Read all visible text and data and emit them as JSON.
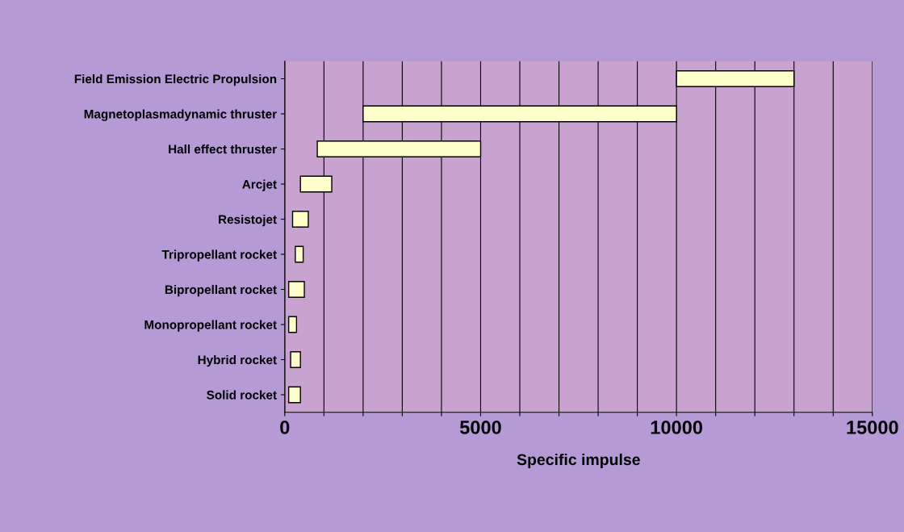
{
  "chart_data": {
    "type": "bar",
    "orientation": "horizontal",
    "xlabel": "Specific impulse",
    "categories": [
      "Field Emission Electric Propulsion",
      "Magnetoplasmadynamic thruster",
      "Hall effect thruster",
      "Arcjet",
      "Resistojet",
      "Tripropellant rocket",
      "Bipropellant rocket",
      "Monopropellant rocket",
      "Hybrid rocket",
      "Solid rocket"
    ],
    "base": [
      10000,
      2000,
      830,
      400,
      200,
      270,
      100,
      100,
      150,
      100
    ],
    "values": [
      3000,
      8000,
      4170,
      800,
      400,
      200,
      400,
      200,
      250,
      300
    ],
    "color": "#ffffcc",
    "xlim": [
      0,
      15000
    ],
    "xticks": [
      0,
      {
        "value": 1000,
        "label": null
      },
      {
        "value": 2000,
        "label": null
      },
      {
        "value": 3000,
        "label": null
      },
      {
        "value": 4000,
        "label": null
      },
      5000,
      {
        "value": 6000,
        "label": null
      },
      {
        "value": 7000,
        "label": null
      },
      {
        "value": 8000,
        "label": null
      },
      {
        "value": 9000,
        "label": null
      },
      10000,
      {
        "value": 11000,
        "label": null
      },
      {
        "value": 12000,
        "label": null
      },
      {
        "value": 13000,
        "label": null
      },
      {
        "value": 14000,
        "label": null
      },
      15000
    ],
    "grid": "x"
  }
}
